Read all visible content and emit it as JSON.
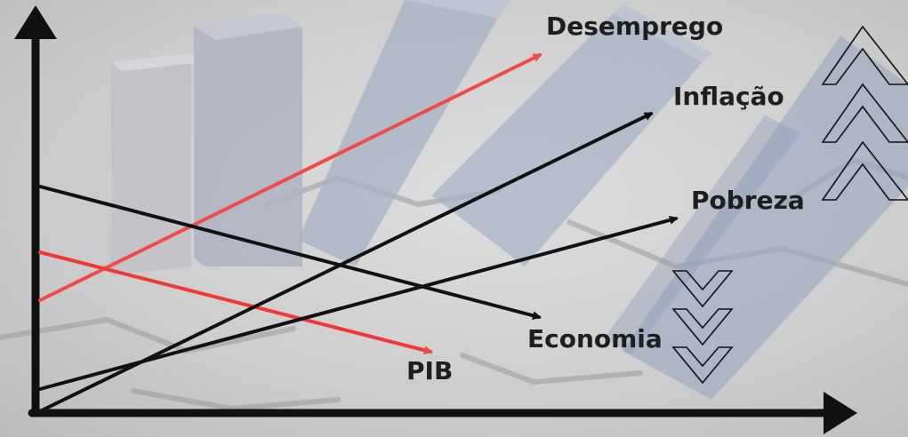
{
  "labels": {
    "desemprego": "Desemprego",
    "inflacao": "Inflação",
    "pobreza": "Pobreza",
    "economia": "Economia",
    "pib": "PIB"
  },
  "colors": {
    "rising_red": "#f04a4a",
    "falling_red": "#f03838",
    "black": "#111111",
    "column_fill": "#a7b0c6"
  },
  "trends": [
    {
      "label_key": "desemprego",
      "direction": "up",
      "color": "red"
    },
    {
      "label_key": "inflacao",
      "direction": "up",
      "color": "black"
    },
    {
      "label_key": "pobreza",
      "direction": "up",
      "color": "black"
    },
    {
      "label_key": "economia",
      "direction": "down",
      "color": "black"
    },
    {
      "label_key": "pib",
      "direction": "down",
      "color": "red"
    }
  ],
  "icons": [
    "up-chevrons-icon",
    "down-chevrons-icon",
    "y-axis-arrow-icon",
    "x-axis-arrow-icon"
  ]
}
